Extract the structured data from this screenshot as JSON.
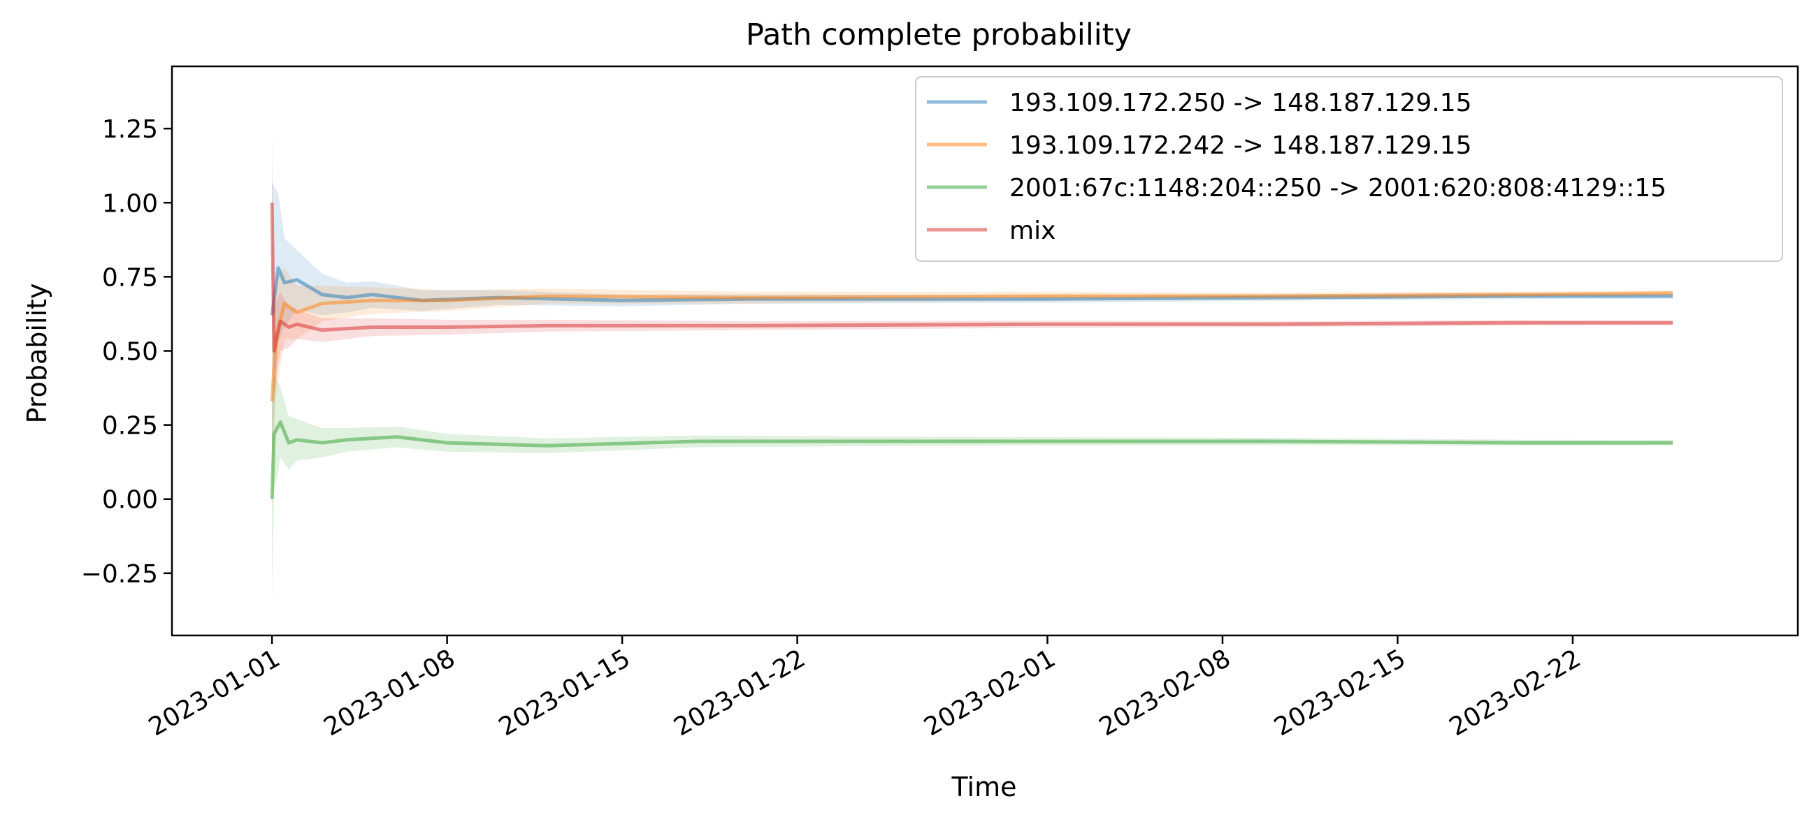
{
  "chart_data": {
    "type": "line",
    "title": "Path complete probability",
    "xlabel": "Time",
    "ylabel": "Probability",
    "x_axis": "date",
    "xlim": [
      "2022-12-28",
      "2023-03-03"
    ],
    "ylim": [
      -0.46,
      1.46
    ],
    "x_ticks": [
      "2023-01-01",
      "2023-01-08",
      "2023-01-15",
      "2023-01-22",
      "2023-02-01",
      "2023-02-08",
      "2023-02-15",
      "2023-02-22"
    ],
    "y_ticks": [
      -0.25,
      0.0,
      0.25,
      0.5,
      0.75,
      1.0,
      1.25
    ],
    "y_tick_labels": [
      "−0.25",
      "0.00",
      "0.25",
      "0.50",
      "0.75",
      "1.00",
      "1.25"
    ],
    "grid": false,
    "legend_position": "top-right",
    "series": [
      {
        "name": "193.109.172.250 -> 148.187.129.15",
        "color": "#1f77b4",
        "x": [
          "2023-01-01",
          "2023-01-01T06:00",
          "2023-01-01T12:00",
          "2023-01-02",
          "2023-01-03",
          "2023-01-04",
          "2023-01-05",
          "2023-01-07",
          "2023-01-10",
          "2023-01-15",
          "2023-01-20",
          "2023-02-01",
          "2023-02-10",
          "2023-02-20",
          "2023-02-26"
        ],
        "y": [
          0.62,
          0.78,
          0.73,
          0.74,
          0.69,
          0.68,
          0.69,
          0.67,
          0.68,
          0.67,
          0.675,
          0.675,
          0.68,
          0.685,
          0.685
        ],
        "band": [
          0.45,
          0.25,
          0.15,
          0.1,
          0.07,
          0.05,
          0.045,
          0.035,
          0.025,
          0.02,
          0.016,
          0.013,
          0.011,
          0.01,
          0.009
        ]
      },
      {
        "name": "193.109.172.242 -> 148.187.129.15",
        "color": "#ff7f0e",
        "x": [
          "2023-01-01",
          "2023-01-01T04:00",
          "2023-01-01T12:00",
          "2023-01-02",
          "2023-01-03",
          "2023-01-05",
          "2023-01-08",
          "2023-01-12",
          "2023-01-20",
          "2023-02-01",
          "2023-02-10",
          "2023-02-20",
          "2023-02-26"
        ],
        "y": [
          0.33,
          0.55,
          0.66,
          0.63,
          0.66,
          0.67,
          0.67,
          0.685,
          0.68,
          0.685,
          0.685,
          0.69,
          0.695
        ],
        "band": [
          0.35,
          0.2,
          0.12,
          0.09,
          0.06,
          0.045,
          0.035,
          0.025,
          0.02,
          0.015,
          0.012,
          0.01,
          0.009
        ]
      },
      {
        "name": "2001:67c:1148:204::250 -> 2001:620:808:4129::15",
        "color": "#2ca02c",
        "x": [
          "2023-01-01",
          "2023-01-01T02:00",
          "2023-01-01T08:00",
          "2023-01-01T16:00",
          "2023-01-02",
          "2023-01-03",
          "2023-01-04",
          "2023-01-06",
          "2023-01-08",
          "2023-01-12",
          "2023-01-18",
          "2023-01-25",
          "2023-02-01",
          "2023-02-10",
          "2023-02-20",
          "2023-02-26"
        ],
        "y": [
          0.0,
          0.22,
          0.26,
          0.19,
          0.2,
          0.19,
          0.2,
          0.21,
          0.19,
          0.18,
          0.195,
          0.195,
          0.195,
          0.195,
          0.19,
          0.19
        ],
        "band": [
          0.35,
          0.2,
          0.12,
          0.09,
          0.07,
          0.05,
          0.04,
          0.035,
          0.03,
          0.025,
          0.02,
          0.016,
          0.014,
          0.012,
          0.01,
          0.009
        ]
      },
      {
        "name": "mix",
        "color": "#d62728",
        "x": [
          "2023-01-01",
          "2023-01-01T02:00",
          "2023-01-01T08:00",
          "2023-01-01T16:00",
          "2023-01-02",
          "2023-01-03",
          "2023-01-05",
          "2023-01-08",
          "2023-01-12",
          "2023-01-20",
          "2023-02-01",
          "2023-02-10",
          "2023-02-20",
          "2023-02-26"
        ],
        "y": [
          1.0,
          0.5,
          0.6,
          0.58,
          0.59,
          0.57,
          0.58,
          0.58,
          0.585,
          0.585,
          0.59,
          0.59,
          0.595,
          0.595
        ],
        "band": [
          0.25,
          0.15,
          0.1,
          0.07,
          0.05,
          0.04,
          0.03,
          0.025,
          0.02,
          0.015,
          0.012,
          0.01,
          0.009,
          0.008
        ]
      }
    ]
  }
}
